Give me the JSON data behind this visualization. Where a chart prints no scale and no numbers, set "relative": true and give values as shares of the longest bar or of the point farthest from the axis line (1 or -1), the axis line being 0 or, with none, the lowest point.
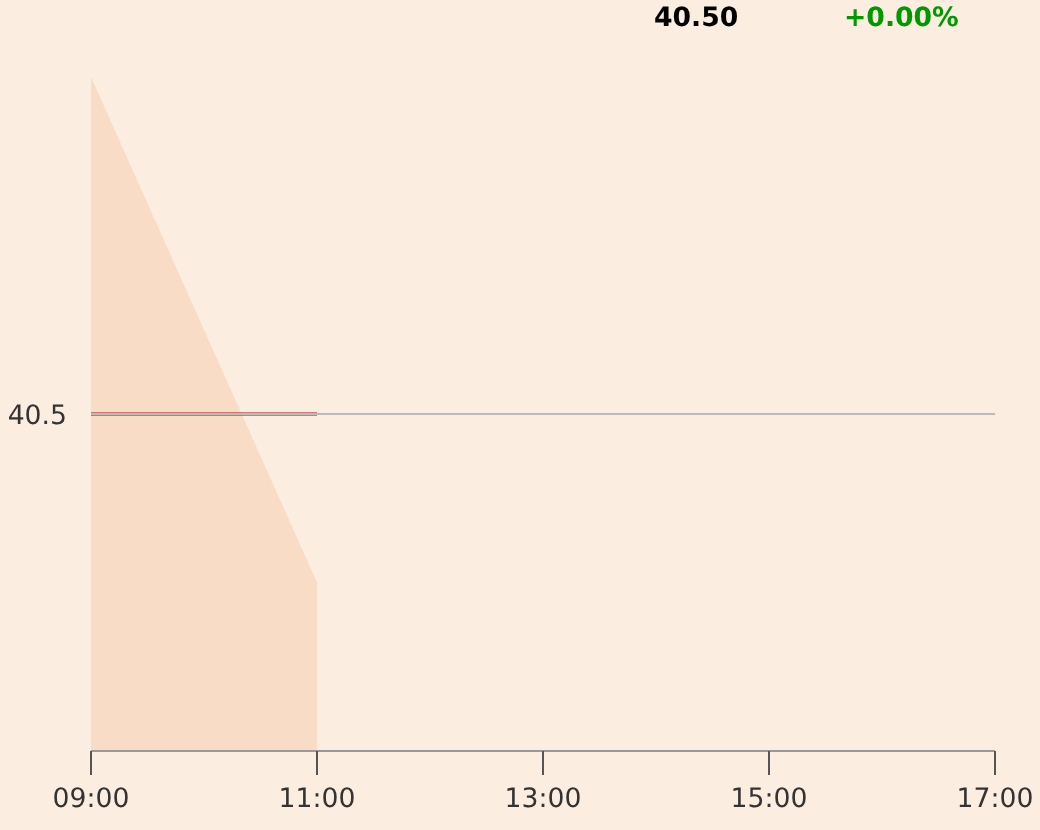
{
  "chart_data": {
    "type": "line",
    "relative": true,
    "x": [
      9,
      11
    ],
    "xlim": [
      9,
      17
    ],
    "xticks": [
      {
        "value": 9,
        "label": "09:00"
      },
      {
        "value": 11,
        "label": "11:00"
      },
      {
        "value": 13,
        "label": "13:00"
      },
      {
        "value": 15,
        "label": "15:00"
      },
      {
        "value": 17,
        "label": "17:00"
      }
    ],
    "series": [
      {
        "type": "area",
        "color": "#f8dcc6",
        "values": [
          1,
          0.25
        ]
      },
      {
        "color": "#a01010",
        "values": [
          0.5,
          0.5
        ]
      }
    ],
    "ref_lines": [
      {
        "axis": "y",
        "value": 0.5,
        "color": "#bbbbbb"
      }
    ],
    "annotations": [
      "40.50",
      "+0.00%",
      "40.5"
    ],
    "grid": false,
    "marker": "none",
    "line_style": "solid"
  }
}
